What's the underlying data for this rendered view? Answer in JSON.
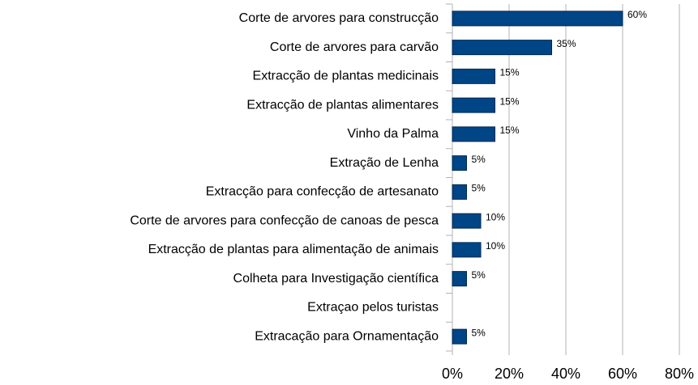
{
  "chart_data": {
    "type": "barh",
    "categories": [
      "Corte de arvores para construcção",
      "Corte de arvores para carvão",
      "Extracção de plantas medicinais",
      "Extracção de plantas alimentares",
      "Vinho da Palma",
      "Extração de Lenha",
      "Extracção para confecção de artesanato",
      "Corte de arvores para confecção de canoas de pesca",
      "Extracção de plantas para alimentação de animais",
      "Colheta para Investigação científica",
      "Extraçao pelos turistas",
      "Extracação para Ornamentação"
    ],
    "values": [
      60,
      35,
      15,
      15,
      15,
      5,
      5,
      10,
      10,
      5,
      null,
      5
    ],
    "value_labels": [
      "60%",
      "35%",
      "15%",
      "15%",
      "15%",
      "5%",
      "5%",
      "10%",
      "10%",
      "5%",
      null,
      "5%"
    ],
    "color": "#004586",
    "xlim": [
      0,
      80
    ],
    "xticks": [
      {
        "value": 0,
        "label": "0%"
      },
      {
        "value": 20,
        "label": "20%"
      },
      {
        "value": 40,
        "label": "40%"
      },
      {
        "value": 60,
        "label": "60%"
      },
      {
        "value": 80,
        "label": "80%"
      }
    ],
    "grid": true
  }
}
